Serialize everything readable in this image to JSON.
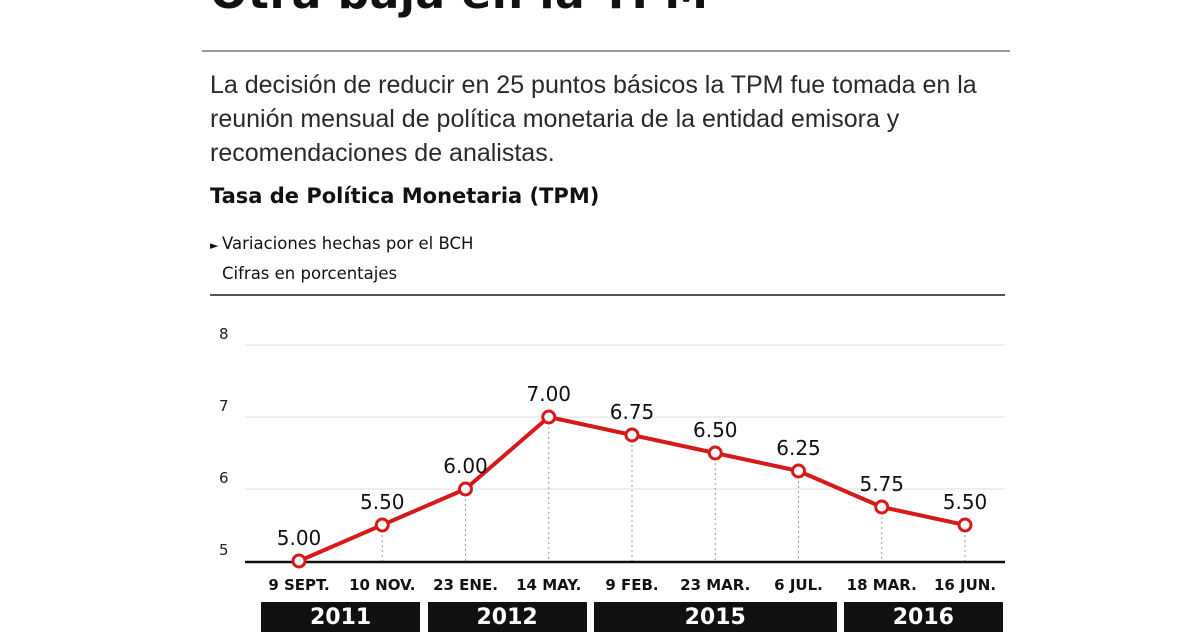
{
  "header": {
    "headline": "Otra baja en la TPM",
    "deck": "La decisión de reducir en 25 puntos básicos la TPM fue tomada en la reunión mensual de política monetaria de la entidad emisora y recomendaciones de analistas.",
    "chart_title": "Tasa de Política Monetaria (TPM)",
    "note_line1": "Variaciones hechas por el BCH",
    "note_line2": "Cifras en porcentajes"
  },
  "colors": {
    "line": "#d61a1a",
    "axis": "#111111",
    "grid": "#dcdcdc"
  },
  "chart_data": {
    "type": "line",
    "title": "Tasa de Política Monetaria (TPM)",
    "subtitle": "Variaciones hechas por el BCH — Cifras en porcentajes",
    "categories": [
      "9 SEPT.",
      "10 NOV.",
      "23 ENE.",
      "14 MAY.",
      "9 FEB.",
      "23 MAR.",
      "6 JUL.",
      "18 MAR.",
      "16 JUN."
    ],
    "values": [
      5.0,
      5.5,
      6.0,
      7.0,
      6.75,
      6.5,
      6.25,
      5.75,
      5.5
    ],
    "labels": [
      "5.00",
      "5.50",
      "6.00",
      "7.00",
      "6.75",
      "6.50",
      "6.25",
      "5.75",
      "5.50"
    ],
    "yticks": [
      "5",
      "6",
      "7",
      "8"
    ],
    "ylim": [
      5,
      8
    ],
    "grid": true,
    "xlabel": "",
    "ylabel": "",
    "years": [
      {
        "label": "2011",
        "first": 0,
        "last": 1
      },
      {
        "label": "2012",
        "first": 2,
        "last": 3
      },
      {
        "label": "2015",
        "first": 4,
        "last": 6
      },
      {
        "label": "2016",
        "first": 7,
        "last": 8
      }
    ]
  }
}
